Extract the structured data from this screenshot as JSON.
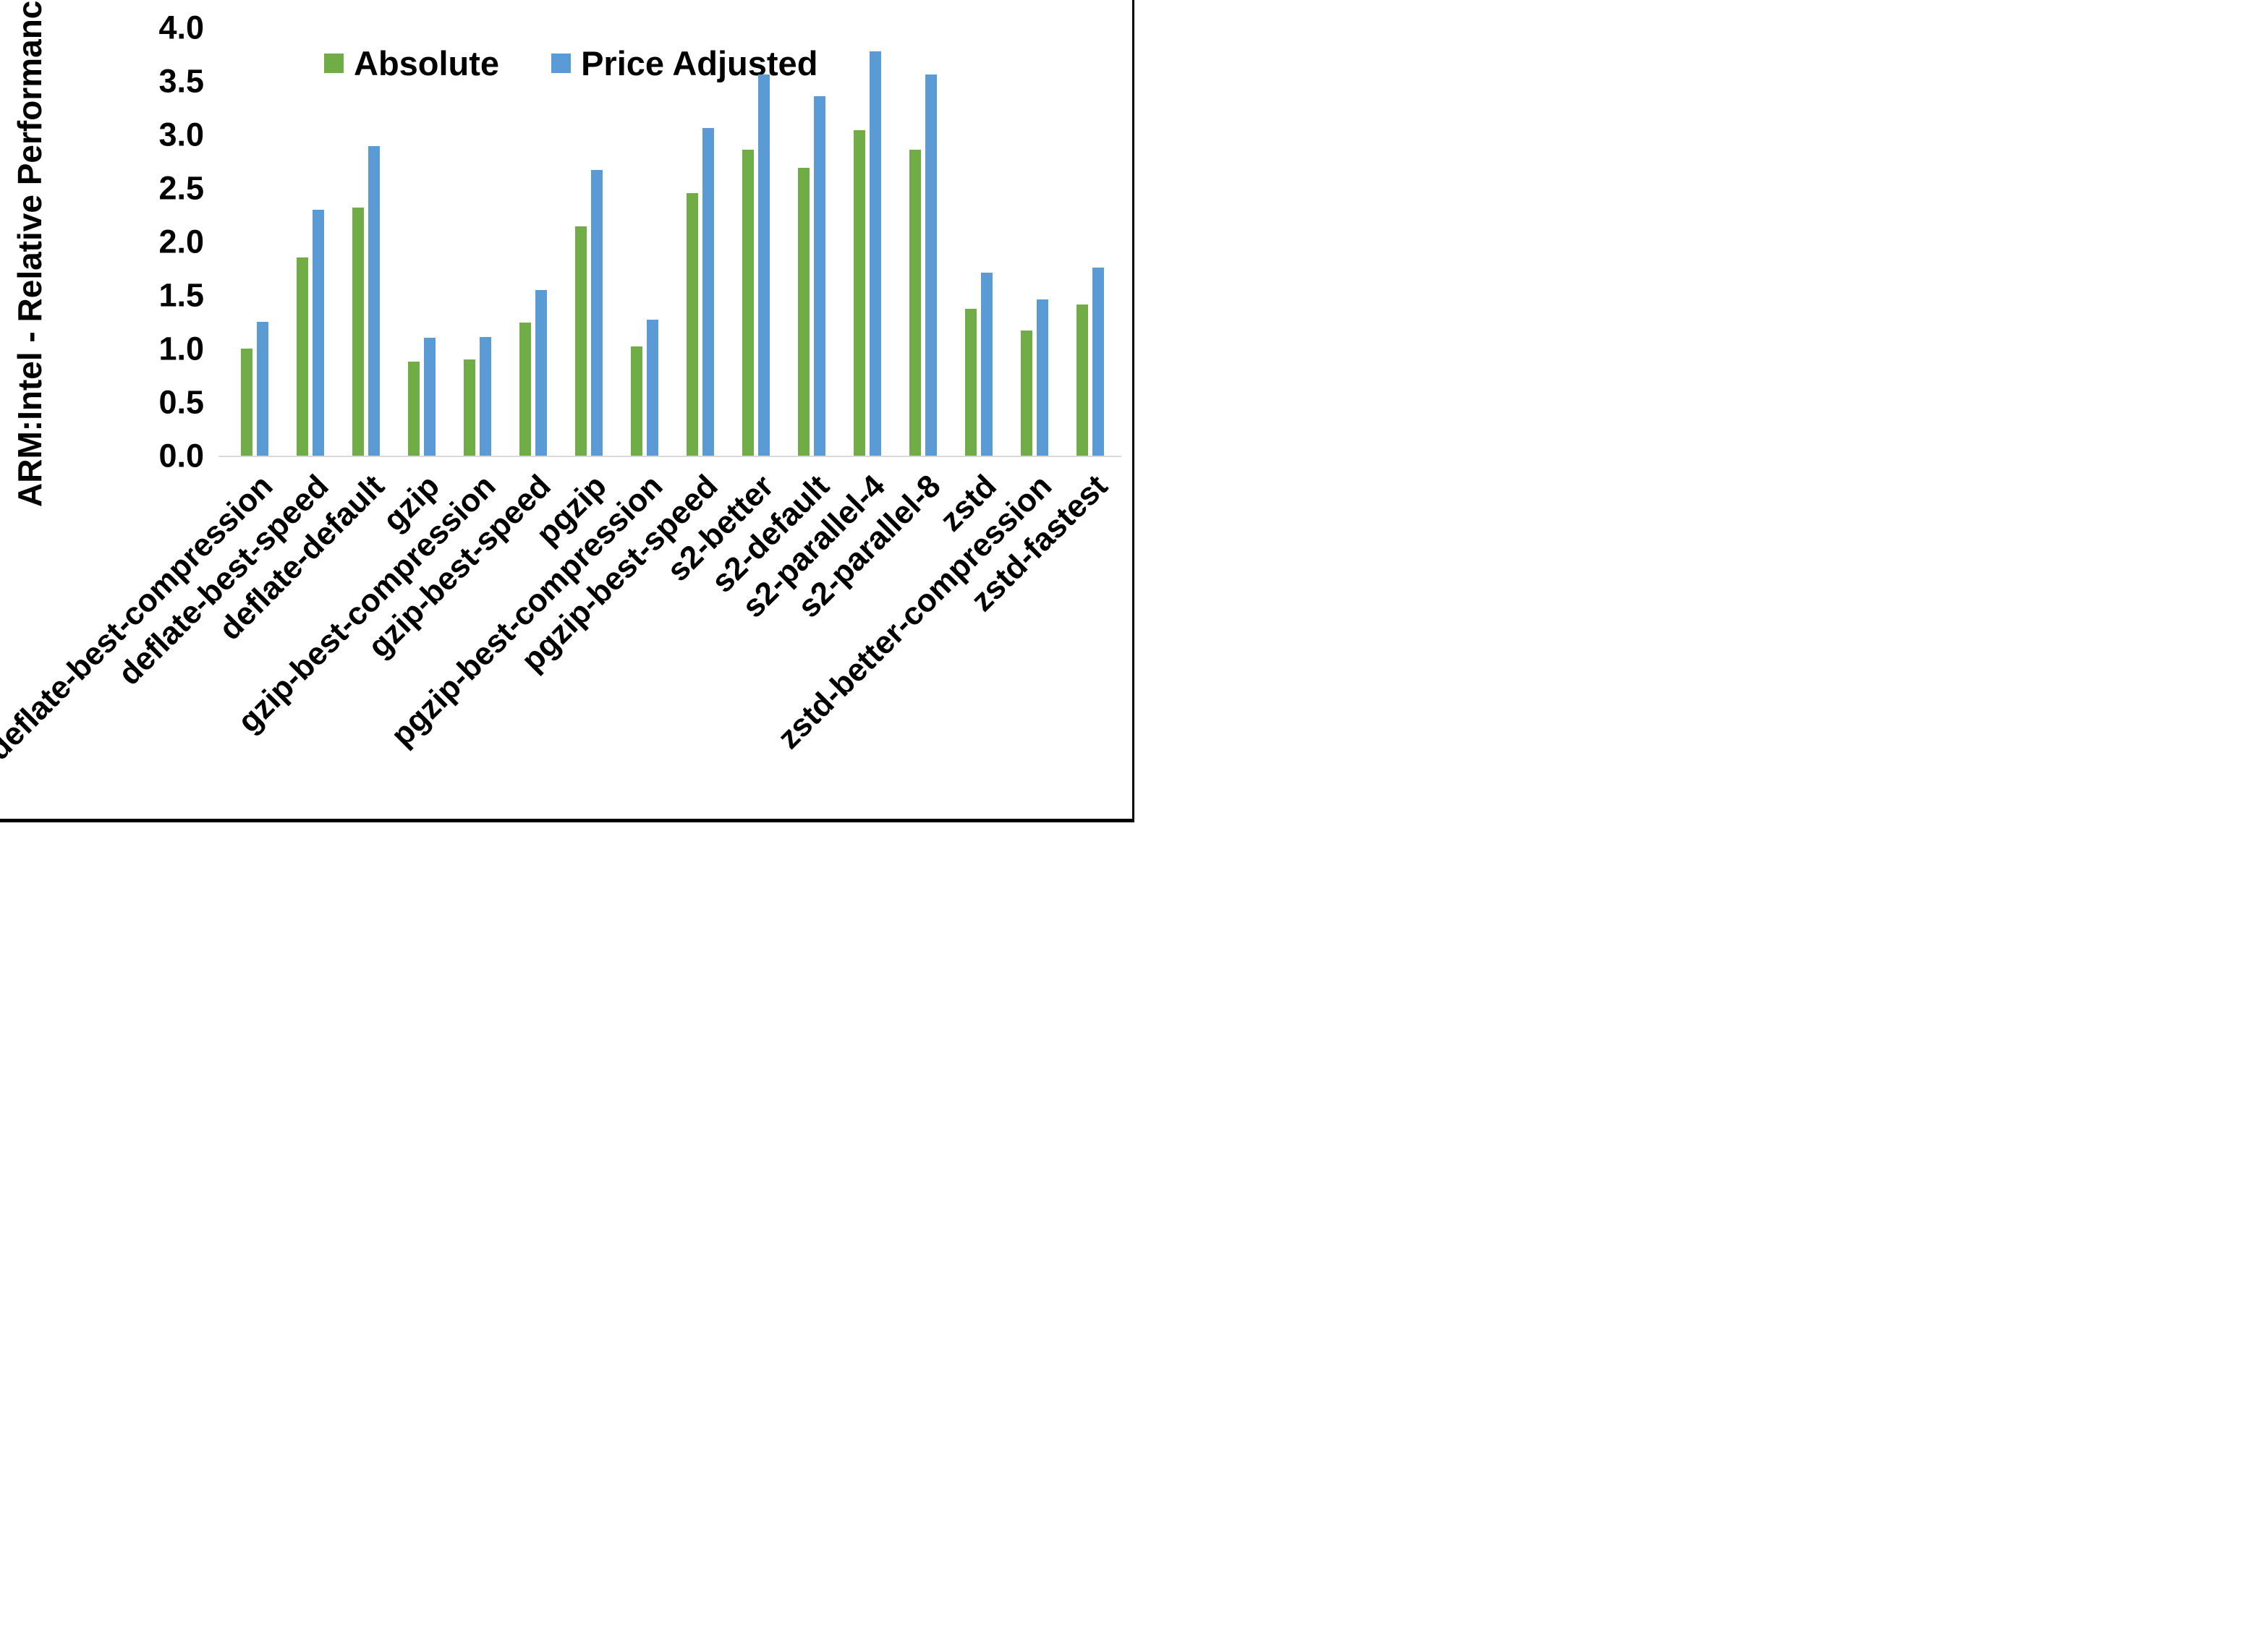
{
  "chart_data": {
    "type": "bar",
    "title": "",
    "xlabel": "",
    "ylabel": "ARM:Intel - Relative Performance",
    "ylim": [
      0,
      4
    ],
    "ytick_step": 0.5,
    "ytick_labels": [
      "0.0",
      "0.5",
      "1.0",
      "1.5",
      "2.0",
      "2.5",
      "3.0",
      "3.5",
      "4.0"
    ],
    "grid": false,
    "legend_position": "top-center",
    "categories": [
      "deflate-best-compression",
      "deflate-best-speed",
      "deflate-default",
      "gzip",
      "gzip-best-compression",
      "gzip-best-speed",
      "pgzip",
      "pgzip-best-compression",
      "pgzip-best-speed",
      "s2-better",
      "s2-default",
      "s2-parallel-4",
      "s2-parallel-8",
      "zstd",
      "zstd-better-compression",
      "zstd-fastest"
    ],
    "series": [
      {
        "name": "Absolute",
        "color": "#70AD47",
        "values": [
          1.0,
          1.85,
          2.32,
          0.88,
          0.9,
          1.24,
          2.14,
          1.02,
          2.45,
          2.86,
          2.69,
          3.04,
          2.86,
          1.37,
          1.17,
          1.41
        ]
      },
      {
        "name": "Price Adjusted",
        "color": "#5B9BD5",
        "values": [
          1.25,
          2.3,
          2.89,
          1.1,
          1.11,
          1.55,
          2.67,
          1.27,
          3.06,
          3.56,
          3.36,
          3.78,
          3.56,
          1.71,
          1.46,
          1.76
        ]
      }
    ],
    "axis_line_color": "#D9D9D9",
    "border_color": "#000000"
  }
}
